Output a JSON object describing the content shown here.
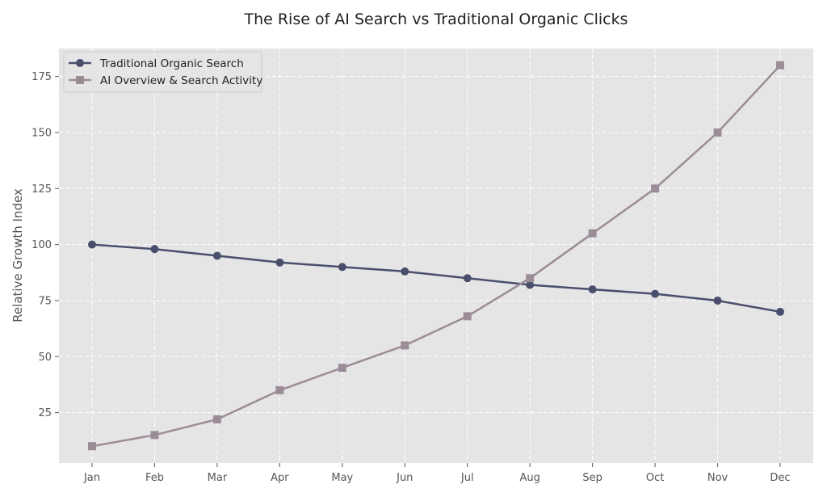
{
  "chart_data": {
    "type": "line",
    "title": "The Rise of AI Search vs Traditional Organic Clicks",
    "xlabel": "",
    "ylabel": "Relative Growth Index",
    "categories": [
      "Jan",
      "Feb",
      "Mar",
      "Apr",
      "May",
      "Jun",
      "Jul",
      "Aug",
      "Sep",
      "Oct",
      "Nov",
      "Dec"
    ],
    "yticks": [
      "25",
      "50",
      "75",
      "100",
      "125",
      "150",
      "175"
    ],
    "ylim": [
      2.5,
      187.5
    ],
    "grid": true,
    "legend_position": "top-left",
    "series": [
      {
        "name": "Traditional Organic Search",
        "values": [
          100,
          98,
          95,
          92,
          90,
          88,
          85,
          82,
          80,
          78,
          75,
          70
        ],
        "color": "#4a4e6d",
        "marker": "circle"
      },
      {
        "name": "AI Overview & Search Activity",
        "values": [
          10,
          15,
          22,
          35,
          45,
          55,
          68,
          85,
          105,
          125,
          150,
          180
        ],
        "color": "#9c8c98",
        "marker": "square"
      }
    ],
    "colors": {
      "plot_background": "#e5e5e5",
      "grid": "#ffffff"
    }
  }
}
